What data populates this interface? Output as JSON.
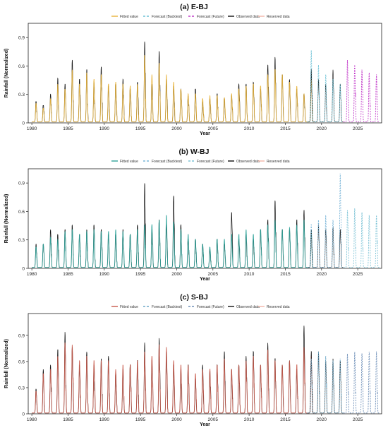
{
  "chart_data": [
    {
      "type": "line",
      "title": "(a) E-BJ",
      "xlabel": "Year",
      "ylabel": "Rainfall (Normalized)",
      "xlim": [
        1979.5,
        2028.3
      ],
      "ylim": [
        0,
        1.05
      ],
      "x_ticks": [
        1980,
        1985,
        1990,
        1995,
        2000,
        2005,
        2010,
        2015,
        2020,
        2025
      ],
      "y_ticks": [
        0,
        0.3,
        0.6,
        0.9
      ],
      "legend": [
        "Fitted value",
        "Forecast (Backtest)",
        "Forecast (Future)",
        "Observed data",
        "Reserved data"
      ],
      "colors": {
        "fitted": "#E8B23A",
        "backtest": "#6EC2D6",
        "future": "#C23BC9",
        "observed": "#111111",
        "reserved": "#F2B5A8"
      },
      "observed_peaks": [
        0.22,
        0.18,
        0.3,
        0.46,
        0.4,
        0.65,
        0.45,
        0.55,
        0.42,
        0.58,
        0.38,
        0.4,
        0.45,
        0.35,
        0.42,
        0.84,
        0.4,
        0.74,
        0.45,
        0.38,
        0.35,
        0.28,
        0.35,
        0.22,
        0.25,
        0.3,
        0.25,
        0.28,
        0.4,
        0.4,
        0.42,
        0.35,
        0.6,
        0.68,
        0.5,
        0.45,
        0.35,
        0.3,
        0.55
      ],
      "fitted_peaks": [
        0.2,
        0.15,
        0.25,
        0.4,
        0.35,
        0.55,
        0.4,
        0.52,
        0.45,
        0.5,
        0.4,
        0.42,
        0.4,
        0.38,
        0.4,
        0.7,
        0.5,
        0.62,
        0.5,
        0.42,
        0.35,
        0.3,
        0.3,
        0.25,
        0.28,
        0.28,
        0.26,
        0.3,
        0.35,
        0.38,
        0.4,
        0.38,
        0.5,
        0.55,
        0.5,
        0.42,
        0.38,
        0.3,
        0.45
      ],
      "reserved_peaks": [
        0.5,
        0.45,
        0.4,
        0.55,
        0.4
      ],
      "backtest_peaks": [
        0.75,
        0.6,
        0.5,
        0.45,
        0.4
      ],
      "future_peaks": [
        0.65,
        0.6,
        0.55,
        0.52,
        0.5
      ]
    },
    {
      "type": "line",
      "title": "(b) W-BJ",
      "xlabel": "Year",
      "ylabel": "Rainfall (Normalized)",
      "xlim": [
        1979.5,
        2028.3
      ],
      "ylim": [
        0,
        1.05
      ],
      "x_ticks": [
        1980,
        1985,
        1990,
        1995,
        2000,
        2005,
        2010,
        2015,
        2020,
        2025
      ],
      "y_ticks": [
        0,
        0.3,
        0.6,
        0.9
      ],
      "legend": [
        "Fitted value",
        "Forecast (Backtest)",
        "Forecast (Future)",
        "Observed data",
        "Reserved data"
      ],
      "colors": {
        "fitted": "#2FA39A",
        "backtest": "#7DB7D9",
        "future": "#7DC3D6",
        "observed": "#111111",
        "reserved": "#F2B5A8"
      },
      "observed_peaks": [
        0.25,
        0.25,
        0.4,
        0.35,
        0.4,
        0.45,
        0.35,
        0.4,
        0.45,
        0.4,
        0.35,
        0.35,
        0.4,
        0.35,
        0.45,
        0.88,
        0.4,
        0.5,
        0.45,
        0.75,
        0.45,
        0.3,
        0.3,
        0.25,
        0.2,
        0.3,
        0.25,
        0.58,
        0.3,
        0.35,
        0.3,
        0.4,
        0.5,
        0.7,
        0.4,
        0.4,
        0.5,
        0.6,
        0.35
      ],
      "fitted_peaks": [
        0.22,
        0.25,
        0.32,
        0.3,
        0.38,
        0.4,
        0.35,
        0.38,
        0.4,
        0.38,
        0.38,
        0.4,
        0.38,
        0.35,
        0.4,
        0.45,
        0.45,
        0.5,
        0.55,
        0.48,
        0.4,
        0.35,
        0.3,
        0.25,
        0.22,
        0.3,
        0.3,
        0.35,
        0.35,
        0.4,
        0.35,
        0.4,
        0.45,
        0.5,
        0.4,
        0.42,
        0.45,
        0.5,
        0.4
      ],
      "reserved_peaks": [
        0.4,
        0.45,
        0.4,
        0.42,
        0.4
      ],
      "backtest_peaks": [
        0.45,
        0.5,
        0.55,
        0.5,
        0.98
      ],
      "future_peaks": [
        0.6,
        0.62,
        0.58,
        0.55,
        0.55
      ]
    },
    {
      "type": "line",
      "title": "(c) S-BJ",
      "xlabel": "Year",
      "ylabel": "Rainfall (Normalized)",
      "xlim": [
        1979.5,
        2028.3
      ],
      "ylim": [
        0,
        1.15
      ],
      "x_ticks": [
        1980,
        1985,
        1990,
        1995,
        2000,
        2005,
        2010,
        2015,
        2020,
        2025
      ],
      "y_ticks": [
        0,
        0.3,
        0.6,
        0.9
      ],
      "legend": [
        "Fitted value",
        "Forecast (Backtest)",
        "Forecast (Future)",
        "Observed data",
        "Reserved data"
      ],
      "colors": {
        "fitted": "#C8594A",
        "backtest": "#6EA9C9",
        "future": "#6E8FB8",
        "observed": "#111111",
        "reserved": "#F2B5A8"
      },
      "observed_peaks": [
        0.28,
        0.5,
        0.55,
        0.72,
        0.92,
        0.75,
        0.55,
        0.7,
        0.55,
        0.62,
        0.65,
        0.45,
        0.5,
        0.55,
        0.6,
        0.8,
        0.6,
        0.85,
        0.7,
        0.55,
        0.5,
        0.55,
        0.4,
        0.55,
        0.48,
        0.55,
        0.7,
        0.5,
        0.55,
        0.65,
        0.7,
        0.55,
        0.8,
        0.62,
        0.55,
        0.6,
        0.5,
        1.0,
        0.7
      ],
      "fitted_peaks": [
        0.25,
        0.45,
        0.5,
        0.65,
        0.8,
        0.78,
        0.6,
        0.65,
        0.6,
        0.6,
        0.6,
        0.5,
        0.55,
        0.55,
        0.6,
        0.7,
        0.65,
        0.78,
        0.75,
        0.6,
        0.55,
        0.55,
        0.45,
        0.5,
        0.5,
        0.55,
        0.62,
        0.5,
        0.55,
        0.6,
        0.65,
        0.55,
        0.72,
        0.6,
        0.55,
        0.6,
        0.55,
        0.75,
        0.65
      ],
      "reserved_peaks": [
        0.65,
        0.7,
        0.6,
        0.62,
        0.6
      ],
      "backtest_peaks": [
        0.62,
        0.7,
        0.65,
        0.6,
        0.62
      ],
      "future_peaks": [
        0.68,
        0.7,
        0.68,
        0.7,
        0.7
      ]
    }
  ]
}
